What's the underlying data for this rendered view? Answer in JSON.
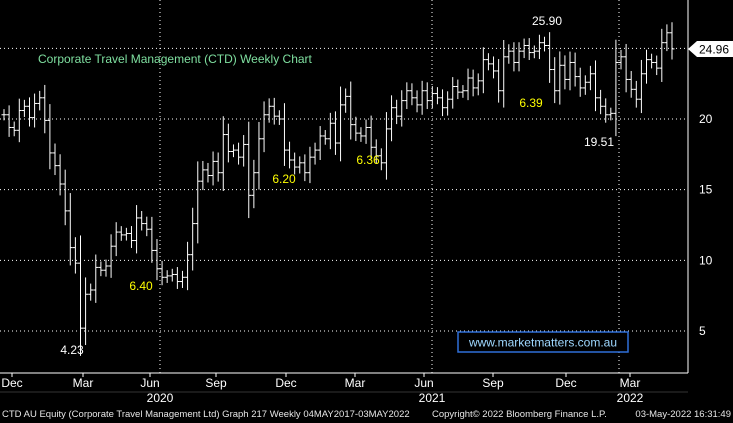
{
  "chart_data": {
    "type": "ohlc",
    "title": "Corporate Travel Management (CTD) Weekly Chart",
    "y_ticks": [
      5,
      10,
      15,
      20
    ],
    "ylim": [
      2,
      28.5
    ],
    "last_price": "24.96",
    "x_month_labels": [
      "Dec",
      "Mar",
      "Jun",
      "Sep",
      "Dec",
      "Mar",
      "Jun",
      "Sep",
      "Dec",
      "Mar"
    ],
    "x_year_labels": [
      "2020",
      "2021",
      "2022"
    ],
    "annotations": [
      "25.90",
      "19.51",
      "4.23",
      "6.40",
      "6.20",
      "6.36",
      "6.39"
    ],
    "watermark": "www.marketmatters.com.au",
    "colors": {
      "background": "#000000",
      "bars": "#ffffff",
      "title": "#7fe0a0",
      "yellow_label": "#ffff00",
      "grid": "#ffffff",
      "watermark_border": "#2f6fd8"
    },
    "bars_close": [
      20.3,
      19.4,
      19.2,
      20.6,
      20.9,
      20.1,
      21.1,
      21.5,
      19.9,
      17.6,
      16.7,
      15.4,
      13.5,
      10.9,
      9.8,
      5.2,
      7.6,
      7.9,
      9.5,
      9.3,
      9.6,
      11.0,
      12.0,
      11.8,
      11.9,
      11.4,
      13.0,
      12.6,
      12.2,
      10.7,
      9.4,
      8.8,
      8.9,
      9.0,
      8.5,
      8.8,
      10.4,
      12.6,
      15.6,
      16.4,
      16.0,
      17.0,
      16.2,
      18.9,
      17.7,
      17.8,
      17.3,
      18.2,
      14.6,
      16.2,
      18.6,
      20.3,
      20.9,
      20.2,
      20.0,
      17.8,
      17.1,
      16.6,
      16.9,
      16.2,
      17.3,
      17.8,
      18.8,
      18.6,
      19.7,
      18.3,
      21.0,
      21.6,
      19.6,
      19.0,
      18.8,
      19.4,
      18.0,
      17.4,
      16.9,
      19.3,
      20.8,
      20.2,
      21.3,
      22.0,
      21.5,
      21.0,
      22.0,
      21.3,
      21.8,
      21.5,
      20.8,
      21.4,
      22.3,
      21.9,
      22.0,
      22.9,
      22.2,
      22.7,
      24.2,
      23.9,
      23.4,
      22.0,
      24.4,
      24.8,
      24.0,
      24.8,
      25.2,
      24.7,
      24.8,
      25.4,
      25.2,
      23.5,
      22.0,
      23.8,
      22.8,
      24.0,
      23.0,
      22.2,
      22.6,
      23.2,
      21.5,
      20.9,
      20.3,
      20.4,
      24.0,
      24.4,
      22.8,
      22.1,
      21.4,
      23.2,
      24.2,
      24.0,
      23.6,
      25.4,
      26.1,
      24.96
    ]
  },
  "footer": {
    "left": "CTD AU Equity (Corporate Travel Management Ltd) Graph 217  Weekly 04MAY2017-03MAY2022",
    "center": "Copyright© 2022 Bloomberg Finance L.P.",
    "right": "03-May-2022 16:31:49"
  }
}
